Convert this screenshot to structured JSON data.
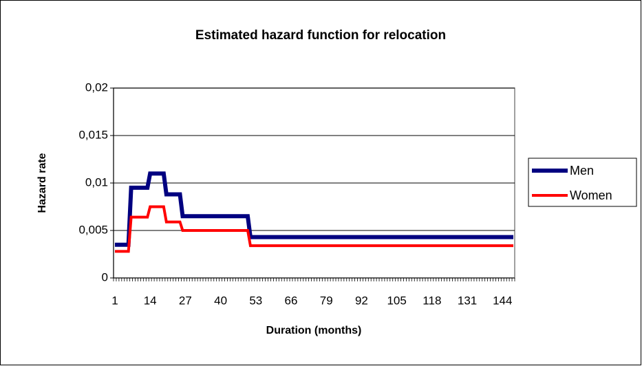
{
  "chart_data": {
    "type": "line",
    "title": "Estimated hazard function for relocation",
    "x_label": "Duration (months)",
    "y_label": "Hazard rate",
    "categories": [
      1,
      null,
      null,
      null,
      null,
      null,
      null,
      null,
      null,
      null,
      null,
      null,
      null,
      14,
      null,
      null,
      null,
      null,
      null,
      null,
      null,
      null,
      null,
      null,
      null,
      null,
      27,
      null,
      null,
      null,
      null,
      null,
      null,
      null,
      null,
      null,
      null,
      null,
      null,
      40,
      null,
      null,
      null,
      null,
      null,
      null,
      null,
      null,
      null,
      null,
      null,
      null,
      53,
      null,
      null,
      null,
      null,
      null,
      null,
      null,
      null,
      null,
      null,
      null,
      null,
      66,
      null,
      null,
      null,
      null,
      null,
      null,
      null,
      null,
      null,
      null,
      null,
      null,
      79,
      null,
      null,
      null,
      null,
      null,
      null,
      null,
      null,
      null,
      null,
      null,
      null,
      92,
      null,
      null,
      null,
      null,
      null,
      null,
      null,
      null,
      null,
      null,
      null,
      null,
      105,
      null,
      null,
      null,
      null,
      null,
      null,
      null,
      null,
      null,
      null,
      null,
      null,
      118,
      null,
      null,
      null,
      null,
      null,
      null,
      null,
      null,
      null,
      null,
      null,
      null,
      131,
      null,
      null,
      null,
      null,
      null,
      null,
      null,
      null,
      null,
      null,
      null,
      null,
      144,
      null,
      null,
      null,
      null
    ],
    "series": [
      {
        "name": "Men",
        "color": "#000080",
        "values": [
          0.0035,
          0.0035,
          0.0035,
          0.0035,
          0.0035,
          0.0035,
          0.0095,
          0.0095,
          0.0095,
          0.0095,
          0.0095,
          0.0095,
          0.0095,
          0.011,
          0.011,
          0.011,
          0.011,
          0.011,
          0.011,
          0.0088,
          0.0088,
          0.0088,
          0.0088,
          0.0088,
          0.0088,
          0.0065,
          0.0065,
          0.0065,
          0.0065,
          0.0065,
          0.0065,
          0.0065,
          0.0065,
          0.0065,
          0.0065,
          0.0065,
          0.0065,
          0.0065,
          0.0065,
          0.0065,
          0.0065,
          0.0065,
          0.0065,
          0.0065,
          0.0065,
          0.0065,
          0.0065,
          0.0065,
          0.0065,
          0.0065,
          0.0043,
          0.0043,
          0.0043,
          0.0043,
          0.0043,
          0.0043,
          0.0043,
          0.0043,
          0.0043,
          0.0043,
          0.0043,
          0.0043,
          0.0043,
          0.0043,
          0.0043,
          0.0043,
          0.0043,
          0.0043,
          0.0043,
          0.0043,
          0.0043,
          0.0043,
          0.0043,
          0.0043,
          0.0043,
          0.0043,
          0.0043,
          0.0043,
          0.0043,
          0.0043,
          0.0043,
          0.0043,
          0.0043,
          0.0043,
          0.0043,
          0.0043,
          0.0043,
          0.0043,
          0.0043,
          0.0043,
          0.0043,
          0.0043,
          0.0043,
          0.0043,
          0.0043,
          0.0043,
          0.0043,
          0.0043,
          0.0043,
          0.0043,
          0.0043,
          0.0043,
          0.0043,
          0.0043,
          0.0043,
          0.0043,
          0.0043,
          0.0043,
          0.0043,
          0.0043,
          0.0043,
          0.0043,
          0.0043,
          0.0043,
          0.0043,
          0.0043,
          0.0043,
          0.0043,
          0.0043,
          0.0043,
          0.0043,
          0.0043,
          0.0043,
          0.0043,
          0.0043,
          0.0043,
          0.0043,
          0.0043,
          0.0043,
          0.0043,
          0.0043,
          0.0043,
          0.0043,
          0.0043,
          0.0043,
          0.0043,
          0.0043,
          0.0043,
          0.0043,
          0.0043,
          0.0043,
          0.0043,
          0.0043,
          0.0043,
          0.0043,
          0.0043,
          0.0043,
          0.0043
        ]
      },
      {
        "name": "Women",
        "color": "#ff0000",
        "values": [
          0.0028,
          0.0028,
          0.0028,
          0.0028,
          0.0028,
          0.0028,
          0.0064,
          0.0064,
          0.0064,
          0.0064,
          0.0064,
          0.0064,
          0.0064,
          0.0075,
          0.0075,
          0.0075,
          0.0075,
          0.0075,
          0.0075,
          0.0059,
          0.0059,
          0.0059,
          0.0059,
          0.0059,
          0.0059,
          0.005,
          0.005,
          0.005,
          0.005,
          0.005,
          0.005,
          0.005,
          0.005,
          0.005,
          0.005,
          0.005,
          0.005,
          0.005,
          0.005,
          0.005,
          0.005,
          0.005,
          0.005,
          0.005,
          0.005,
          0.005,
          0.005,
          0.005,
          0.005,
          0.005,
          0.0034,
          0.0034,
          0.0034,
          0.0034,
          0.0034,
          0.0034,
          0.0034,
          0.0034,
          0.0034,
          0.0034,
          0.0034,
          0.0034,
          0.0034,
          0.0034,
          0.0034,
          0.0034,
          0.0034,
          0.0034,
          0.0034,
          0.0034,
          0.0034,
          0.0034,
          0.0034,
          0.0034,
          0.0034,
          0.0034,
          0.0034,
          0.0034,
          0.0034,
          0.0034,
          0.0034,
          0.0034,
          0.0034,
          0.0034,
          0.0034,
          0.0034,
          0.0034,
          0.0034,
          0.0034,
          0.0034,
          0.0034,
          0.0034,
          0.0034,
          0.0034,
          0.0034,
          0.0034,
          0.0034,
          0.0034,
          0.0034,
          0.0034,
          0.0034,
          0.0034,
          0.0034,
          0.0034,
          0.0034,
          0.0034,
          0.0034,
          0.0034,
          0.0034,
          0.0034,
          0.0034,
          0.0034,
          0.0034,
          0.0034,
          0.0034,
          0.0034,
          0.0034,
          0.0034,
          0.0034,
          0.0034,
          0.0034,
          0.0034,
          0.0034,
          0.0034,
          0.0034,
          0.0034,
          0.0034,
          0.0034,
          0.0034,
          0.0034,
          0.0034,
          0.0034,
          0.0034,
          0.0034,
          0.0034,
          0.0034,
          0.0034,
          0.0034,
          0.0034,
          0.0034,
          0.0034,
          0.0034,
          0.0034,
          0.0034,
          0.0034,
          0.0034,
          0.0034,
          0.0034
        ]
      }
    ],
    "ylim": [
      0,
      0.02
    ],
    "yticks": [
      0,
      {
        "value": 0.005,
        "label": "0,005"
      },
      {
        "value": 0.01,
        "label": "0,01"
      },
      {
        "value": 0.015,
        "label": "0,015"
      },
      {
        "value": 0.02,
        "label": "0,02"
      }
    ],
    "grid": true,
    "legend": "right"
  }
}
